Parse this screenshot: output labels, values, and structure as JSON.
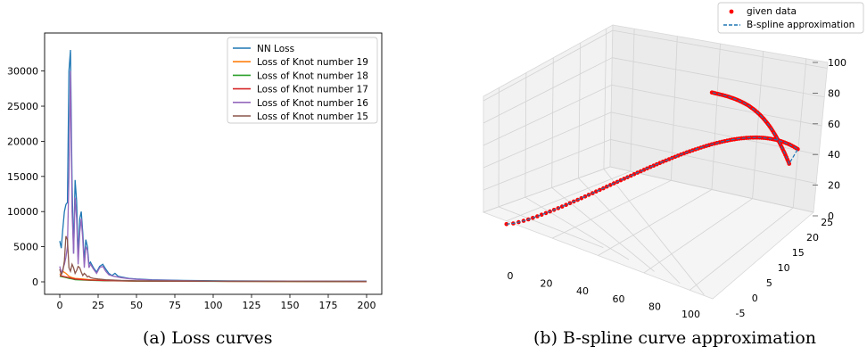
{
  "captions": {
    "a": "(a)  Loss curves",
    "b": "(b)  B-spline curve approximation"
  },
  "chart_data": [
    {
      "type": "line",
      "xlim": [
        0,
        200
      ],
      "ylim": [
        0,
        33000
      ],
      "xticks": [
        0,
        25,
        50,
        75,
        100,
        125,
        150,
        175,
        200
      ],
      "yticks": [
        0,
        5000,
        10000,
        15000,
        20000,
        25000,
        30000
      ],
      "grid": false,
      "legend_position": "top-right",
      "series": [
        {
          "name": "NN Loss",
          "color": "#1f77b4",
          "x": [
            0,
            1,
            2,
            3,
            4,
            5,
            6,
            7,
            8,
            9,
            10,
            11,
            12,
            13,
            14,
            15,
            16,
            17,
            18,
            19,
            20,
            22,
            24,
            26,
            28,
            30,
            32,
            34,
            36,
            38,
            40,
            45,
            50,
            60,
            80,
            100,
            150,
            200
          ],
          "y": [
            5800,
            4800,
            7500,
            10000,
            11000,
            11300,
            30000,
            33000,
            14000,
            4000,
            14500,
            11500,
            3500,
            9000,
            10000,
            7000,
            3000,
            6000,
            5000,
            2500,
            2800,
            2000,
            1400,
            2200,
            2500,
            1800,
            1200,
            900,
            1200,
            800,
            700,
            500,
            400,
            300,
            200,
            150,
            120,
            100
          ]
        },
        {
          "name": "Loss of Knot number 19",
          "color": "#ff7f0e",
          "x": [
            0,
            2,
            4,
            6,
            8,
            10,
            15,
            20,
            30,
            50,
            100,
            200
          ],
          "y": [
            1000,
            1500,
            1200,
            800,
            600,
            500,
            400,
            300,
            200,
            120,
            80,
            50
          ]
        },
        {
          "name": "Loss of Knot number 18",
          "color": "#2ca02c",
          "x": [
            0,
            2,
            4,
            6,
            8,
            10,
            15,
            20,
            30,
            50,
            100,
            200
          ],
          "y": [
            800,
            700,
            600,
            500,
            400,
            300,
            250,
            200,
            150,
            100,
            60,
            40
          ]
        },
        {
          "name": "Loss of Knot number 17",
          "color": "#d62728",
          "x": [
            0,
            2,
            4,
            6,
            8,
            10,
            15,
            20,
            30,
            50,
            100,
            200
          ],
          "y": [
            900,
            800,
            700,
            600,
            500,
            400,
            300,
            250,
            180,
            120,
            70,
            40
          ]
        },
        {
          "name": "Loss of Knot number 16",
          "color": "#9467bd",
          "x": [
            0,
            1,
            2,
            3,
            4,
            5,
            6,
            7,
            8,
            9,
            10,
            11,
            12,
            13,
            14,
            15,
            16,
            17,
            18,
            19,
            20,
            22,
            24,
            26,
            28,
            30,
            32,
            35,
            40,
            45,
            50,
            60,
            80,
            100,
            150,
            200
          ],
          "y": [
            2200,
            1200,
            1800,
            2500,
            3500,
            5000,
            15000,
            30000,
            10000,
            4000,
            12000,
            9000,
            2500,
            7000,
            9000,
            6000,
            2000,
            5000,
            4500,
            2000,
            2500,
            1800,
            1200,
            2000,
            2200,
            1500,
            1000,
            800,
            600,
            450,
            350,
            250,
            180,
            120,
            100,
            80
          ]
        },
        {
          "name": "Loss of Knot number 15",
          "color": "#8c564b",
          "x": [
            0,
            1,
            2,
            3,
            4,
            5,
            6,
            7,
            8,
            9,
            10,
            11,
            12,
            13,
            14,
            15,
            16,
            17,
            18,
            19,
            20,
            22,
            25,
            30,
            40,
            50,
            100,
            200
          ],
          "y": [
            1800,
            1000,
            1500,
            3000,
            6500,
            6000,
            2000,
            1500,
            2500,
            2000,
            1200,
            1600,
            2200,
            2000,
            1400,
            900,
            1200,
            1000,
            700,
            800,
            600,
            500,
            400,
            300,
            200,
            150,
            100,
            60
          ]
        }
      ]
    },
    {
      "type": "scatter",
      "subtype": "3d",
      "xlim": [
        -5,
        100
      ],
      "ylim": [
        -5,
        25
      ],
      "zlim": [
        0,
        100
      ],
      "xticks": [
        0,
        20,
        40,
        60,
        80,
        100
      ],
      "yticks": [
        -5,
        0,
        5,
        10,
        15,
        20,
        25
      ],
      "zticks": [
        0,
        20,
        40,
        60,
        80,
        100
      ],
      "grid": true,
      "legend_position": "top-right",
      "series": [
        {
          "name": "given data",
          "color": "#ff0000",
          "marker": "dot"
        },
        {
          "name": "B-spline approximation",
          "color": "#1f77b4",
          "style": "dashed"
        }
      ]
    }
  ]
}
